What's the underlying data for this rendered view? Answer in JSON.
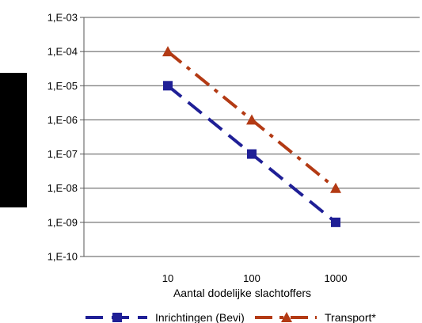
{
  "chart_data": {
    "type": "line",
    "title": "",
    "xlabel": "Aantal dodelijke slachtoffers",
    "ylabel": "",
    "x_scale": "log",
    "y_scale": "log",
    "x_ticks": [
      "10",
      "100",
      "1000"
    ],
    "y_ticks": [
      "1,E-03",
      "1,E-04",
      "1,E-05",
      "1,E-06",
      "1,E-07",
      "1,E-08",
      "1,E-09",
      "1,E-10"
    ],
    "ylim": [
      1e-10,
      0.001
    ],
    "xlim": [
      1,
      10000
    ],
    "grid": "horizontal",
    "legend_position": "bottom",
    "series": [
      {
        "name": "Inrichtingen (Bevi)",
        "x": [
          10,
          100,
          1000
        ],
        "y": [
          1e-05,
          1e-07,
          1e-09
        ],
        "color": "#1f1f96",
        "marker": "square",
        "line_style": "dashed"
      },
      {
        "name": "Transport*",
        "x": [
          10,
          100,
          1000
        ],
        "y": [
          0.0001,
          1e-06,
          1e-08
        ],
        "color": "#b33a14",
        "marker": "triangle",
        "line_style": "dash-dot"
      }
    ]
  }
}
